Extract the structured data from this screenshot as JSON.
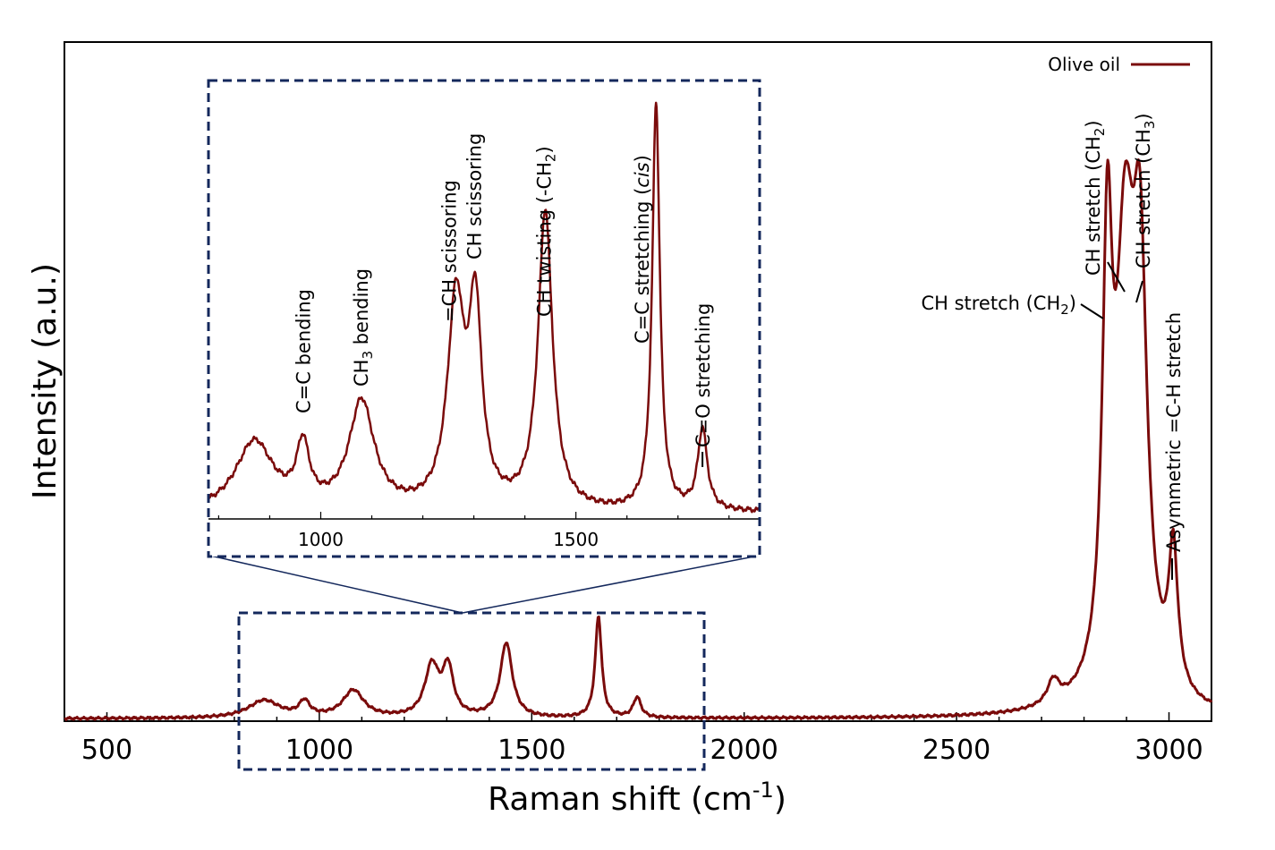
{
  "colors": {
    "series": "#7a0b0b",
    "zoom_box": "#14285c",
    "axis": "#000000"
  },
  "chart_data": {
    "type": "line",
    "xlabel": "Raman shift (cm-1)",
    "ylabel": "Intensity (a.u.)",
    "xlim": [
      400,
      3100
    ],
    "ylim": [
      0,
      100
    ],
    "xticks": [
      500,
      1000,
      1500,
      2000,
      2500,
      3000
    ],
    "grid": false,
    "legend_position": "top-right",
    "series": [
      {
        "name": "Olive oil",
        "peaks": [
          {
            "x": 870,
            "y": 2.6,
            "w": 45
          },
          {
            "x": 965,
            "y": 2.2,
            "w": 15
          },
          {
            "x": 1080,
            "y": 4.0,
            "w": 30
          },
          {
            "x": 1265,
            "y": 7.5,
            "w": 20
          },
          {
            "x": 1303,
            "y": 7.0,
            "w": 15
          },
          {
            "x": 1440,
            "y": 11.0,
            "w": 17
          },
          {
            "x": 1657,
            "y": 15.0,
            "w": 9
          },
          {
            "x": 1748,
            "y": 3.0,
            "w": 11
          },
          {
            "x": 2728,
            "y": 3.5,
            "w": 17
          },
          {
            "x": 2855,
            "y": 60.0,
            "w": 14
          },
          {
            "x": 2897,
            "y": 62.0,
            "w": 27
          },
          {
            "x": 2932,
            "y": 55.0,
            "w": 20
          },
          {
            "x": 3010,
            "y": 20.5,
            "w": 13
          }
        ]
      }
    ],
    "annotations": [
      {
        "text": "CH stretch (CH",
        "sub": "2",
        "after": ")",
        "x": 2855
      },
      {
        "text": "CH stretch (CH",
        "sub": "2",
        "after": ")",
        "x": 2880
      },
      {
        "text": "CH stretch (CH",
        "sub": "3",
        "after": ")",
        "x": 2925
      },
      {
        "text": "Asymmetric =C-H stretch",
        "x": 3010
      }
    ],
    "inset": {
      "xlim": [
        780,
        1860
      ],
      "xticks": [
        1000,
        1500
      ],
      "zoom_region": [
        810,
        1880
      ],
      "annotations": [
        {
          "text": "C=C bending",
          "x": 965
        },
        {
          "text": "CH",
          "sub": "3",
          "after": " bending",
          "x": 1078
        },
        {
          "text": "=CH scissoring",
          "x": 1265
        },
        {
          "text": "CH scissoring",
          "x": 1303
        },
        {
          "text": "CH twisting (-CH",
          "sub": "2",
          "after": ")",
          "x": 1440
        },
        {
          "text": "C=C stretching (",
          "italic": "cis",
          "after": ")",
          "x": 1657
        },
        {
          "text": "C=O stretching",
          "x": 1748
        }
      ]
    }
  }
}
